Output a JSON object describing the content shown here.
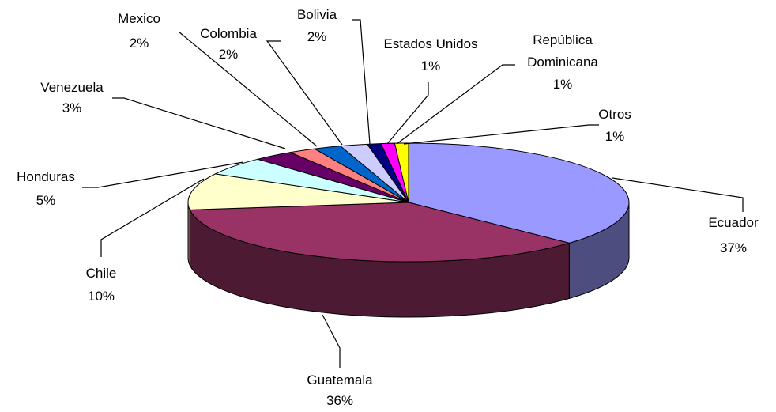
{
  "chart_data": {
    "type": "pie",
    "style": "3d-exploded-none",
    "title": "",
    "slices": [
      {
        "label": "Ecuador",
        "value": 37,
        "value_text": "37%",
        "color": "#9999ff",
        "side_color": "#4d4d80"
      },
      {
        "label": "Guatemala",
        "value": 36,
        "value_text": "36%",
        "color": "#993366",
        "side_color": "#4d1a33"
      },
      {
        "label": "Chile",
        "value": 10,
        "value_text": "10%",
        "color": "#ffffcc",
        "side_color": "#808066"
      },
      {
        "label": "Honduras",
        "value": 5,
        "value_text": "5%",
        "color": "#ccffff",
        "side_color": "#668080"
      },
      {
        "label": "Venezuela",
        "value": 3,
        "value_text": "3%",
        "color": "#660066",
        "side_color": "#330033"
      },
      {
        "label": "Mexico",
        "value": 2,
        "value_text": "2%",
        "color": "#ff8080",
        "side_color": "#804040"
      },
      {
        "label": "Colombia",
        "value": 2,
        "value_text": "2%",
        "color": "#0066cc",
        "side_color": "#003366"
      },
      {
        "label": "Bolivia",
        "value": 2,
        "value_text": "2%",
        "color": "#ccccff",
        "side_color": "#666680"
      },
      {
        "label": "Estados Unidos",
        "value": 1,
        "value_text": "1%",
        "color": "#000080",
        "side_color": "#000040"
      },
      {
        "label": "República Dominicana",
        "value": 1,
        "value_text": "1%",
        "color": "#ff00ff",
        "side_color": "#800080"
      },
      {
        "label": "Otros",
        "value": 1,
        "value_text": "1%",
        "color": "#ffff00",
        "side_color": "#808000"
      }
    ]
  }
}
